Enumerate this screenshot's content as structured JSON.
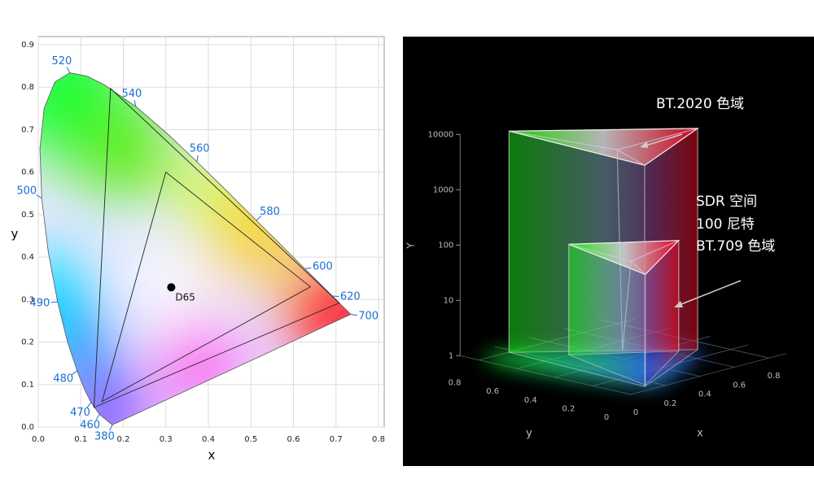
{
  "chart_data": [
    {
      "type": "chromaticity",
      "xlabel": "x",
      "ylabel": "y",
      "xlim": [
        0,
        0.8
      ],
      "ylim": [
        0,
        0.9
      ],
      "xticks": [
        {
          "value": 0,
          "label": "0.0"
        },
        0.1,
        0.2,
        0.3,
        0.4,
        0.5,
        0.6,
        0.7,
        0.8
      ],
      "yticks": [
        {
          "value": 0,
          "label": "0.0"
        },
        0.1,
        0.2,
        0.3,
        0.4,
        0.5,
        0.6,
        0.7,
        0.8,
        0.9
      ],
      "grid": true,
      "locus": {
        "wavelengths": [
          380,
          460,
          470,
          null,
          480,
          null,
          490,
          null,
          500,
          null,
          null,
          null,
          520,
          null,
          null,
          540,
          null,
          560,
          null,
          580,
          null,
          600,
          620,
          700
        ],
        "x": [
          0.1741,
          0.144,
          0.1241,
          0.1096,
          0.0913,
          0.0687,
          0.0454,
          0.0235,
          0.0082,
          0.0039,
          0.0139,
          0.0389,
          0.0743,
          0.1142,
          0.1547,
          0.2296,
          0.3016,
          0.3731,
          0.4441,
          0.5125,
          0.5752,
          0.627,
          0.6915,
          0.7347
        ],
        "y": [
          0.005,
          0.0297,
          0.0578,
          0.0868,
          0.1327,
          0.2007,
          0.295,
          0.4127,
          0.5384,
          0.6548,
          0.7502,
          0.812,
          0.8338,
          0.8262,
          0.8059,
          0.7543,
          0.6923,
          0.6245,
          0.5547,
          0.4866,
          0.4242,
          0.3725,
          0.3083,
          0.2653
        ]
      },
      "gamuts": [
        {
          "x": [
            0.708,
            0.17,
            0.131
          ],
          "y": [
            0.292,
            0.797,
            0.046
          ]
        },
        {
          "x": [
            0.64,
            0.3,
            0.15
          ],
          "y": [
            0.33,
            0.6,
            0.06
          ]
        }
      ],
      "point": {
        "label": "D65",
        "x": 0.3127,
        "y": 0.329
      }
    },
    {
      "type": "gamut-volume",
      "xlabel": "x",
      "ylabel": "y",
      "zlabel": "Y",
      "xticks": [
        0,
        0.2,
        0.4,
        0.6,
        0.8
      ],
      "yticks": [
        0,
        0.2,
        0.4,
        0.6,
        0.8
      ],
      "zscale": "log",
      "zlim": [
        1,
        10000
      ],
      "zticks": [
        1,
        10,
        100,
        1000,
        10000
      ],
      "volumes": [
        {
          "x": [
            0.708,
            0.17,
            0.131
          ],
          "y": [
            0.292,
            0.797,
            0.046
          ],
          "peak": 10000
        },
        {
          "x": [
            0.64,
            0.3,
            0.15
          ],
          "y": [
            0.33,
            0.6,
            0.06
          ],
          "peak": 100
        }
      ],
      "annotations": [
        {
          "lines": [
            "BT.2020 色域"
          ]
        },
        {
          "lines": [
            "SDR 空间",
            "100 尼特",
            "BT.709 色域"
          ]
        }
      ]
    }
  ]
}
